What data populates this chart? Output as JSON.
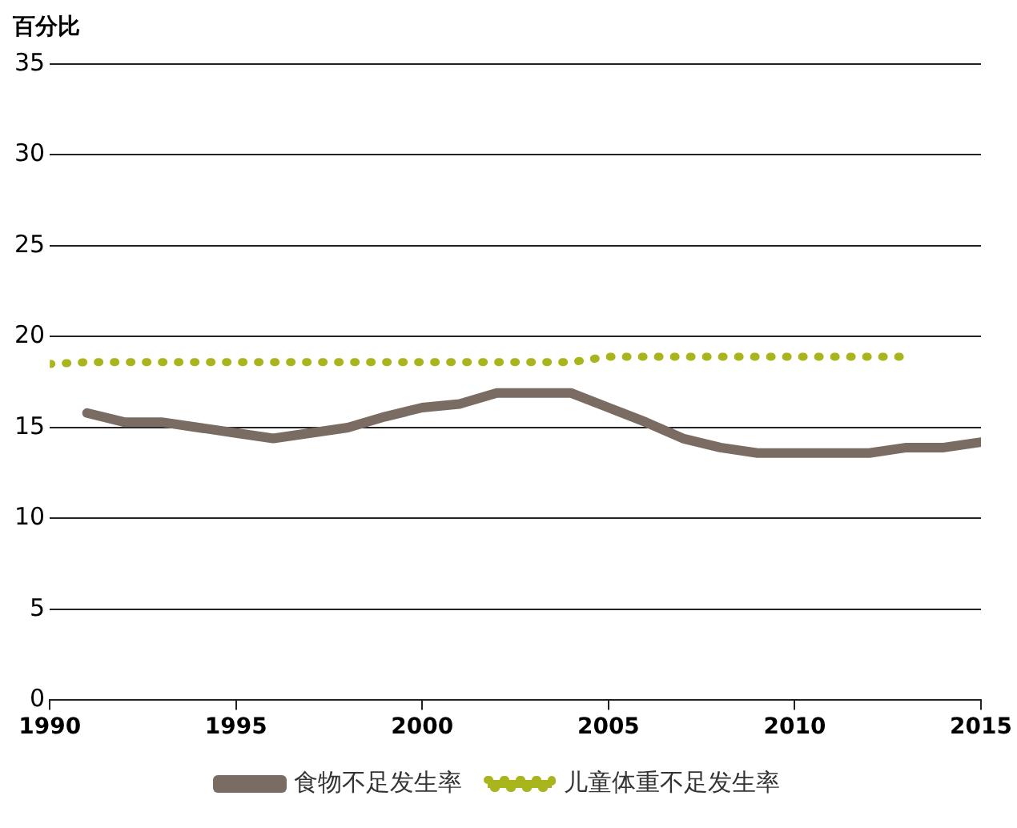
{
  "chart_data": {
    "type": "line",
    "ylabel": "百分比",
    "x": [
      1990,
      1991,
      1992,
      1993,
      1994,
      1995,
      1996,
      1997,
      1998,
      1999,
      2000,
      2001,
      2002,
      2003,
      2004,
      2005,
      2006,
      2007,
      2008,
      2009,
      2010,
      2011,
      2012,
      2013,
      2014,
      2015
    ],
    "series": [
      {
        "name": "食物不足发生率",
        "color": "#7b6c63",
        "line_style": "solid",
        "values": [
          null,
          15.8,
          15.3,
          15.3,
          15.0,
          14.7,
          14.4,
          14.7,
          15.0,
          15.6,
          16.1,
          16.3,
          16.9,
          16.9,
          16.9,
          16.1,
          15.3,
          14.4,
          13.9,
          13.6,
          13.6,
          13.6,
          13.6,
          13.9,
          13.9,
          14.2
        ]
      },
      {
        "name": "儿童体重不足发生率",
        "color": "#a9b51d",
        "line_style": "dotted",
        "values": [
          18.5,
          18.6,
          18.6,
          18.6,
          18.6,
          18.6,
          18.6,
          18.6,
          18.6,
          18.6,
          18.6,
          18.6,
          18.6,
          18.6,
          18.6,
          18.9,
          18.9,
          18.9,
          18.9,
          18.9,
          18.9,
          18.9,
          18.9,
          18.9,
          null,
          null
        ]
      }
    ],
    "xlim": [
      1990,
      2015
    ],
    "xticks": [
      1990,
      1995,
      2000,
      2005,
      2010,
      2015
    ],
    "ylim": [
      0,
      35
    ],
    "yticks": [
      0,
      5,
      10,
      15,
      20,
      25,
      30,
      35
    ],
    "grid": "y",
    "legend": "bottom",
    "marker": "none"
  }
}
